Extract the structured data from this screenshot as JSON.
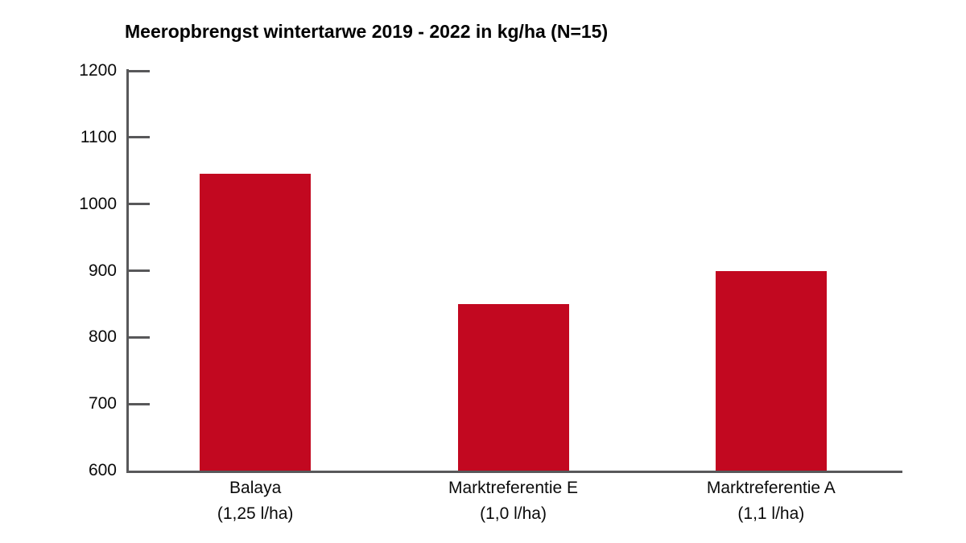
{
  "chart_data": {
    "type": "bar",
    "title": "Meeropbrengst wintertarwe 2019 - 2022 in kg/ha (N=15)",
    "categories": [
      "Balaya",
      "Marktreferentie E",
      "Marktreferentie A"
    ],
    "category_sublabels": [
      "(1,25 l/ha)",
      "(1,0 l/ha)",
      "(1,1 l/ha)"
    ],
    "values": [
      1045,
      850,
      900
    ],
    "xlabel": "",
    "ylabel": "",
    "ylim": [
      600,
      1200
    ],
    "yticks": [
      600,
      700,
      800,
      900,
      1000,
      1100,
      1200
    ],
    "grid": false,
    "legend": false,
    "colors": {
      "bar": "#C20820",
      "axis": "#58585A",
      "text": "#0A0A0A"
    }
  }
}
